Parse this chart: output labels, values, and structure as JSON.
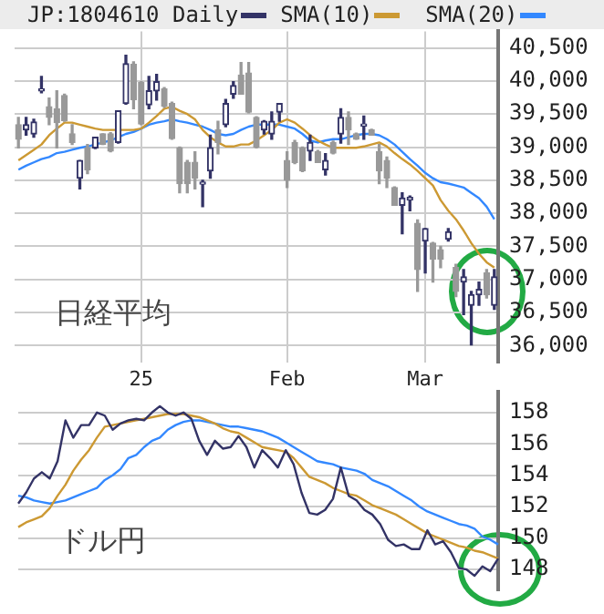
{
  "chart_data": [
    {
      "type": "candlestick",
      "legend": "top",
      "grid": true,
      "annotations": [
        "日経平均"
      ],
      "categories": [
        null,
        null,
        null,
        null,
        null,
        null,
        null,
        null,
        null,
        null,
        null,
        null,
        null,
        null,
        null,
        null,
        "25",
        null,
        null,
        null,
        null,
        null,
        null,
        null,
        null,
        null,
        null,
        null,
        null,
        null,
        null,
        null,
        null,
        null,
        null,
        "Feb",
        null,
        null,
        null,
        null,
        null,
        null,
        null,
        null,
        null,
        null,
        null,
        null,
        null,
        null,
        null,
        null,
        null,
        "Mar",
        null,
        null,
        null,
        null,
        null,
        null,
        null,
        null,
        null
      ],
      "ylim": [
        35750,
        40750
      ],
      "yticks": [
        {
          "value": 36000,
          "label": "36,000"
        },
        {
          "value": 36500,
          "label": "36,500"
        },
        {
          "value": 37000,
          "label": "37,000"
        },
        {
          "value": 37500,
          "label": "37,500"
        },
        {
          "value": 38000,
          "label": "38,000"
        },
        {
          "value": 38500,
          "label": "38,500"
        },
        {
          "value": 39000,
          "label": "39,000"
        },
        {
          "value": 39500,
          "label": "39,500"
        },
        {
          "value": 40000,
          "label": "40,000"
        },
        {
          "value": 40500,
          "label": "40,500"
        }
      ],
      "series": [
        {
          "name": "JP:1804610 Daily",
          "type": "candlestick",
          "color": "#333366",
          "colors": [
            "#999999",
            "#333366",
            "#333366",
            "#333366",
            "#999999",
            "#999999",
            "#999999",
            "#999999",
            "#333366",
            "#999999",
            "#333366",
            "#999999",
            "#999999",
            "#333366",
            "#333366",
            "#999999",
            "#999999",
            "#333366",
            "#333366",
            "#999999",
            "#999999",
            "#999999",
            "#999999",
            "#999999",
            "#333366",
            "#333366",
            "#999999",
            "#333366",
            "#333366",
            "#999999",
            "#999999",
            "#999999",
            "#333366",
            "#333366",
            "#333366",
            "#999999",
            "#999999",
            "#999999",
            "#333366",
            "#999999",
            "#333366",
            "#999999",
            "#333366",
            "#999999",
            "#999999",
            "#333366",
            "#999999",
            "#999999",
            "#999999",
            "#999999",
            "#333366",
            "#333366",
            "#999999",
            "#333366",
            "#999999",
            "#999999",
            "#333366",
            "#999999",
            "#333366",
            "#333366",
            "#333366",
            "#999999",
            "#333366"
          ],
          "ohlc": [
            [
              39340,
              39450,
              38990,
              39120
            ],
            [
              39260,
              39450,
              39180,
              39340
            ],
            [
              39200,
              39420,
              39150,
              39380
            ],
            [
              39850,
              40070,
              39820,
              39880
            ],
            [
              39610,
              39740,
              39340,
              39450
            ],
            [
              39580,
              39850,
              38990,
              39370
            ],
            [
              39780,
              39800,
              39390,
              39400
            ],
            [
              39200,
              39340,
              39040,
              39070
            ],
            [
              38530,
              38800,
              38370,
              38800
            ],
            [
              38990,
              39040,
              38600,
              38660
            ],
            [
              38990,
              39150,
              38980,
              39150
            ],
            [
              39200,
              39200,
              39040,
              39040
            ],
            [
              39200,
              39220,
              38930,
              38940
            ],
            [
              39070,
              39550,
              39060,
              39550
            ],
            [
              39660,
              40390,
              39650,
              40260
            ],
            [
              40250,
              40290,
              39580,
              39720
            ],
            [
              39980,
              39990,
              39340,
              39350
            ],
            [
              39640,
              40070,
              39580,
              39850
            ],
            [
              39850,
              40100,
              39710,
              39990
            ],
            [
              39880,
              39900,
              39600,
              39620
            ],
            [
              39660,
              39680,
              39120,
              39130
            ],
            [
              38990,
              39000,
              38310,
              38450
            ],
            [
              38770,
              38800,
              38310,
              38450
            ],
            [
              38770,
              38930,
              38370,
              38530
            ],
            [
              38440,
              38500,
              38100,
              38470
            ],
            [
              38640,
              39180,
              38530,
              38990
            ],
            [
              39260,
              39390,
              38900,
              39070
            ],
            [
              39340,
              39720,
              39310,
              39660
            ],
            [
              39800,
              39990,
              39740,
              39930
            ],
            [
              40090,
              40280,
              39800,
              39800
            ],
            [
              40120,
              40280,
              39520,
              39530
            ],
            [
              39450,
              39460,
              38990,
              39000
            ],
            [
              39260,
              39400,
              39200,
              39390
            ],
            [
              39200,
              39530,
              39120,
              39390
            ],
            [
              39530,
              39660,
              39390,
              39660
            ],
            [
              38800,
              38930,
              38390,
              38500
            ],
            [
              39070,
              39100,
              38750,
              38770
            ],
            [
              38990,
              39000,
              38630,
              38640
            ],
            [
              38940,
              39180,
              38800,
              39070
            ],
            [
              38930,
              38950,
              38770,
              38770
            ],
            [
              38660,
              38900,
              38580,
              38800
            ],
            [
              39070,
              39090,
              38900,
              38910
            ],
            [
              39200,
              39580,
              39060,
              39450
            ],
            [
              39450,
              39530,
              39040,
              39260
            ],
            [
              39200,
              39210,
              39120,
              39120
            ],
            [
              39320,
              39470,
              39120,
              39350
            ],
            [
              39260,
              39270,
              39180,
              39180
            ],
            [
              38930,
              39040,
              38450,
              38640
            ],
            [
              38800,
              38850,
              38390,
              38530
            ],
            [
              38390,
              38400,
              38120,
              38120
            ],
            [
              38120,
              38310,
              37690,
              38230
            ],
            [
              38200,
              38260,
              38040,
              38240
            ],
            [
              37850,
              37900,
              36820,
              37150
            ],
            [
              37580,
              37770,
              37100,
              37770
            ],
            [
              37550,
              37560,
              36960,
              37310
            ],
            [
              37450,
              37500,
              37180,
              37310
            ],
            [
              37610,
              37770,
              37580,
              37720
            ],
            [
              37180,
              37230,
              36740,
              36820
            ],
            [
              36960,
              37150,
              36470,
              37040
            ],
            [
              36610,
              36820,
              36010,
              36770
            ],
            [
              36770,
              36960,
              36610,
              36850
            ],
            [
              37100,
              37150,
              36720,
              36770
            ],
            [
              36610,
              37150,
              36550,
              37040
            ]
          ]
        },
        {
          "name": "SMA(10)",
          "type": "line",
          "color": "#cc9933",
          "values": [
            38800,
            38880,
            38960,
            39040,
            39180,
            39280,
            39370,
            39370,
            39340,
            39310,
            39280,
            39260,
            39260,
            39260,
            39260,
            39260,
            39280,
            39370,
            39470,
            39580,
            39610,
            39550,
            39500,
            39420,
            39260,
            39150,
            39070,
            39010,
            39010,
            39040,
            39040,
            39100,
            39180,
            39260,
            39370,
            39420,
            39370,
            39280,
            39180,
            39100,
            39040,
            38990,
            38990,
            38990,
            38990,
            39010,
            39040,
            39070,
            39010,
            38910,
            38820,
            38740,
            38640,
            38530,
            38420,
            38200,
            38040,
            37910,
            37740,
            37550,
            37390,
            37260,
            37180
          ]
        },
        {
          "name": "SMA(20)",
          "type": "line",
          "color": "#3388ff",
          "values": [
            38660,
            38720,
            38770,
            38820,
            38850,
            38910,
            38930,
            38960,
            38990,
            39010,
            39040,
            39070,
            39100,
            39150,
            39200,
            39230,
            39280,
            39340,
            39370,
            39390,
            39420,
            39390,
            39370,
            39340,
            39310,
            39260,
            39200,
            39180,
            39200,
            39260,
            39310,
            39340,
            39340,
            39340,
            39340,
            39310,
            39280,
            39200,
            39100,
            39070,
            39100,
            39120,
            39120,
            39150,
            39180,
            39200,
            39200,
            39180,
            39120,
            39040,
            38930,
            38820,
            38720,
            38610,
            38530,
            38470,
            38450,
            38420,
            38390,
            38310,
            38230,
            38100,
            37910
          ]
        }
      ]
    },
    {
      "type": "line",
      "grid": "y",
      "tick_labels": "y",
      "annotations": [
        "ドル円"
      ],
      "categories": [
        null,
        null,
        null,
        null,
        null,
        null,
        null,
        null,
        null,
        null,
        null,
        null,
        null,
        null,
        null,
        null,
        null,
        null,
        null,
        null,
        null,
        null,
        null,
        null,
        null,
        null,
        null,
        null,
        null,
        null,
        null,
        null,
        null,
        null,
        null,
        null,
        null,
        null,
        null,
        null,
        null,
        null,
        null,
        null,
        null,
        null,
        null,
        null,
        null,
        null,
        null,
        null,
        null,
        null,
        null,
        null,
        null,
        null,
        null,
        null,
        null,
        null
      ],
      "ylim": [
        146.7,
        159.3
      ],
      "yticks": [
        148,
        150,
        152,
        154,
        156,
        158
      ],
      "series": [
        {
          "color": "#333366",
          "values": [
            152.2,
            152.9,
            153.8,
            154.2,
            153.8,
            154.9,
            157.5,
            156.4,
            157.2,
            157.2,
            158.0,
            157.8,
            156.9,
            157.3,
            157.5,
            157.6,
            157.5,
            158.0,
            158.4,
            158.0,
            157.8,
            158.0,
            157.6,
            156.2,
            155.3,
            156.2,
            155.7,
            155.8,
            156.5,
            155.8,
            154.5,
            155.6,
            155.1,
            154.5,
            155.6,
            154.7,
            152.9,
            151.6,
            151.5,
            151.8,
            152.5,
            154.5,
            152.7,
            152.4,
            151.8,
            151.5,
            150.9,
            149.9,
            149.5,
            149.6,
            149.3,
            149.3,
            150.5,
            149.6,
            149.8,
            149.1,
            148.1,
            148.0,
            147.6,
            148.2,
            147.9,
            148.7
          ]
        },
        {
          "color": "#cc9933",
          "values": [
            150.7,
            151.0,
            151.2,
            151.4,
            151.9,
            152.7,
            153.4,
            154.3,
            155.0,
            155.6,
            156.4,
            157.1,
            157.2,
            157.3,
            157.4,
            157.5,
            157.6,
            157.7,
            157.8,
            157.9,
            157.9,
            157.9,
            157.8,
            157.7,
            157.5,
            157.3,
            157.0,
            156.8,
            156.7,
            156.4,
            156.1,
            155.8,
            155.7,
            155.6,
            155.5,
            155.1,
            154.5,
            153.9,
            153.7,
            153.5,
            153.2,
            153.0,
            152.8,
            152.7,
            152.4,
            152.1,
            151.9,
            151.7,
            151.5,
            151.2,
            150.9,
            150.6,
            150.3,
            150.1,
            149.9,
            149.7,
            149.5,
            149.4,
            149.2,
            149.1,
            148.9,
            148.7
          ]
        },
        {
          "color": "#3388ff",
          "values": [
            152.7,
            152.6,
            152.4,
            152.3,
            152.2,
            152.3,
            152.4,
            152.6,
            152.8,
            153.0,
            153.2,
            153.7,
            154.0,
            154.4,
            155.1,
            155.3,
            155.8,
            156.2,
            156.4,
            156.9,
            157.2,
            157.4,
            157.5,
            157.5,
            157.4,
            157.3,
            157.2,
            157.1,
            157.1,
            157.0,
            156.9,
            156.8,
            156.6,
            156.4,
            156.1,
            155.8,
            155.5,
            155.2,
            154.9,
            154.8,
            154.7,
            154.5,
            154.4,
            154.3,
            154.1,
            153.7,
            153.5,
            153.3,
            153.0,
            152.7,
            152.4,
            152.0,
            151.7,
            151.5,
            151.3,
            151.1,
            150.9,
            150.8,
            150.6,
            150.1,
            149.9,
            149.6
          ]
        }
      ]
    }
  ]
}
